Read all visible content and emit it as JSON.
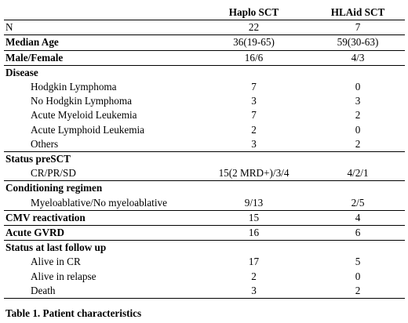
{
  "header": {
    "col_haplo": "Haplo SCT",
    "col_hlaid": "HLAid SCT"
  },
  "rows": [
    {
      "label": "N",
      "haplo": "22",
      "hlaid": "7"
    },
    {
      "label": "Median Age",
      "haplo": "36(19-65)",
      "hlaid": "59(30-63)"
    },
    {
      "label": "Male/Female",
      "haplo": "16/6",
      "hlaid": "4/3"
    },
    {
      "label": "Disease"
    },
    {
      "label": "Hodgkin Lymphoma",
      "haplo": "7",
      "hlaid": "0"
    },
    {
      "label": "No Hodgkin Lymphoma",
      "haplo": "3",
      "hlaid": "3"
    },
    {
      "label": "Acute Myeloid Leukemia",
      "haplo": "7",
      "hlaid": "2"
    },
    {
      "label": "Acute Lymphoid Leukemia",
      "haplo": "2",
      "hlaid": "0"
    },
    {
      "label": "Others",
      "haplo": "3",
      "hlaid": "2"
    },
    {
      "label": "Status preSCT"
    },
    {
      "label": "CR/PR/SD",
      "haplo": "15(2 MRD+)/3/4",
      "hlaid": "4/2/1"
    },
    {
      "label": "Conditioning regimen"
    },
    {
      "label": "Myeloablative/No myeloablative",
      "haplo": "9/13",
      "hlaid": "2/5"
    },
    {
      "label": "CMV reactivation",
      "haplo": "15",
      "hlaid": "4"
    },
    {
      "label": "Acute GVRD",
      "haplo": "16",
      "hlaid": "6"
    },
    {
      "label": "Status at last follow up"
    },
    {
      "label": "Alive in CR",
      "haplo": "17",
      "hlaid": "5"
    },
    {
      "label": "Alive in relapse",
      "haplo": "2",
      "hlaid": "0"
    },
    {
      "label": "Death",
      "haplo": "3",
      "hlaid": "2"
    }
  ],
  "caption": "Table 1. Patient characteristics"
}
